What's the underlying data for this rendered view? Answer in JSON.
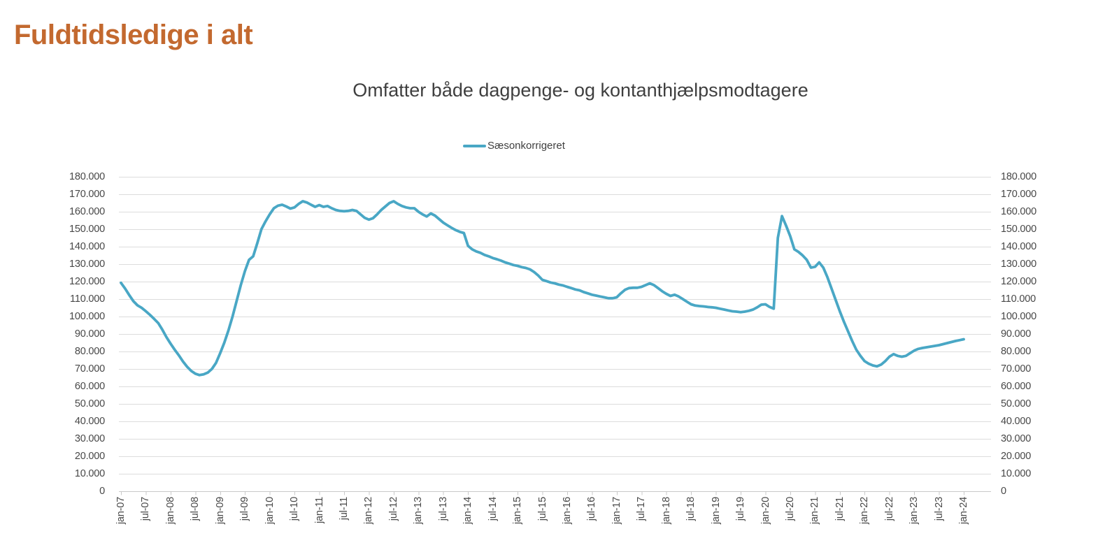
{
  "page": {
    "title": "Fuldtidsledige i alt"
  },
  "colors": {
    "title_accent": "#c3692f",
    "series_line": "#49a7c5",
    "gridline": "#dcdcdc",
    "axis_line": "#c9c9c9",
    "subtitle_text": "#3f3f3f",
    "tick_label_text": "#474747"
  },
  "chart_data": {
    "type": "line",
    "title": "Omfatter både dagpenge- og kontanthjælpsmodtagere",
    "legend_position": "top-center",
    "grid": true,
    "y_axis": {
      "min": 0,
      "max": 180000,
      "interval": 10000,
      "sides": [
        "left",
        "right"
      ],
      "tick_labels": [
        "180.000",
        "170.000",
        "160.000",
        "150.000",
        "140.000",
        "130.000",
        "120.000",
        "110.000",
        "100.000",
        "90.000",
        "80.000",
        "70.000",
        "60.000",
        "50.000",
        "40.000",
        "30.000",
        "20.000",
        "10.000",
        "0"
      ]
    },
    "x_axis": {
      "frequency": "monthly",
      "start": "jan-07",
      "end": "jan-24",
      "tick_interval_months": 6,
      "label_rotation": -90,
      "tick_labels": [
        "jan-07",
        "jul-07",
        "jan-08",
        "jul-08",
        "jan-09",
        "jul-09",
        "jan-10",
        "jul-10",
        "jan-11",
        "jul-11",
        "jan-12",
        "jul-12",
        "jan-13",
        "jul-13",
        "jan-14",
        "jul-14",
        "jan-15",
        "jul-15",
        "jan-16",
        "jul-16",
        "jan-17",
        "jul-17",
        "jan-18",
        "jul-18",
        "jan-19",
        "jul-19",
        "jan-20",
        "jul-20",
        "jan-21",
        "jul-21",
        "jan-22",
        "jul-22",
        "jan-23",
        "jul-23",
        "jan-24"
      ]
    },
    "series": [
      {
        "name": "Sæsonkorrigeret",
        "color": "#49a7c5",
        "values": [
          119300,
          116000,
          112300,
          108800,
          106400,
          105000,
          103100,
          101000,
          98700,
          96300,
          92500,
          88200,
          84500,
          81000,
          77800,
          74300,
          71300,
          68900,
          67300,
          66500,
          66900,
          67900,
          70000,
          73500,
          79000,
          85000,
          92000,
          100000,
          109000,
          118000,
          126000,
          132500,
          134500,
          142000,
          150000,
          154500,
          158500,
          162000,
          163500,
          164000,
          163000,
          161800,
          162500,
          164500,
          166000,
          165300,
          164000,
          162800,
          163800,
          162800,
          163300,
          162000,
          161000,
          160500,
          160300,
          160500,
          161000,
          160500,
          158500,
          156500,
          155500,
          156300,
          158500,
          161000,
          163000,
          165000,
          166000,
          164500,
          163300,
          162500,
          162000,
          162000,
          160000,
          158500,
          157300,
          159000,
          157800,
          155800,
          153800,
          152300,
          150800,
          149500,
          148500,
          147800,
          140500,
          138500,
          137300,
          136500,
          135300,
          134500,
          133500,
          132800,
          132000,
          131000,
          130300,
          129500,
          129000,
          128300,
          127800,
          127000,
          125500,
          123500,
          121000,
          120300,
          119500,
          119000,
          118300,
          117800,
          117000,
          116300,
          115500,
          115000,
          114000,
          113300,
          112500,
          112000,
          111500,
          111000,
          110500,
          110500,
          111000,
          113300,
          115300,
          116300,
          116500,
          116500,
          117000,
          118000,
          119000,
          118000,
          116300,
          114500,
          113000,
          111800,
          112500,
          111500,
          110000,
          108500,
          107000,
          106300,
          106000,
          105800,
          105500,
          105300,
          105000,
          104500,
          104000,
          103500,
          103000,
          102800,
          102500,
          102800,
          103300,
          104000,
          105300,
          106800,
          107000,
          105500,
          104500,
          145000,
          157500,
          152000,
          146000,
          138500,
          137000,
          135000,
          132500,
          128000,
          128500,
          131000,
          128000,
          122500,
          116000,
          109500,
          103000,
          97000,
          91500,
          86000,
          81000,
          77500,
          74500,
          73000,
          72000,
          71500,
          72500,
          74500,
          77000,
          78500,
          77500,
          77000,
          77500,
          79000,
          80500,
          81500,
          82000,
          82400,
          82800,
          83200,
          83600,
          84200,
          84800,
          85400,
          86000,
          86500,
          87000
        ]
      }
    ]
  }
}
